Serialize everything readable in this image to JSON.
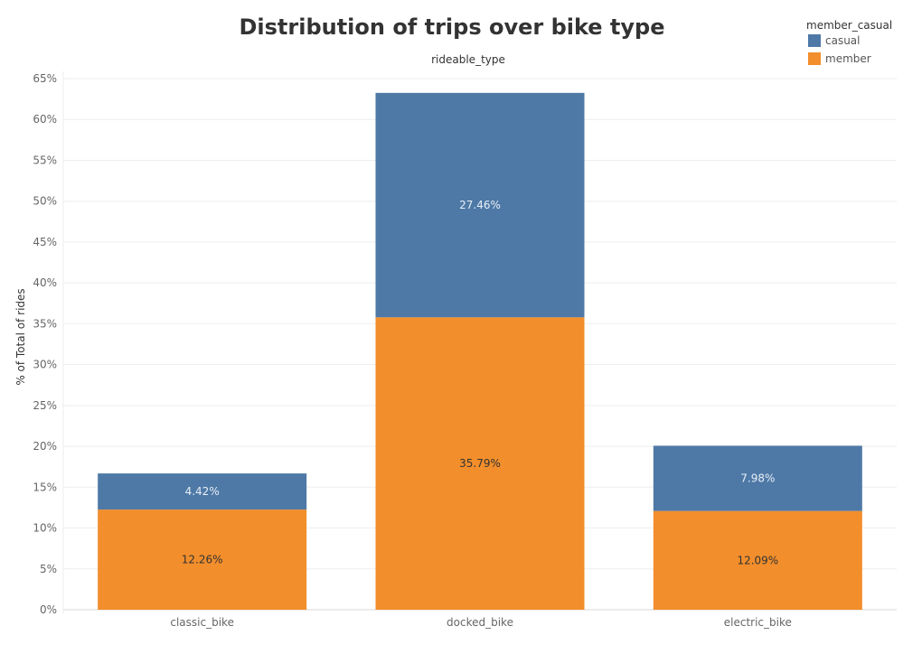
{
  "chart_data": {
    "type": "bar",
    "stacked": true,
    "title": "Distribution of trips over bike type",
    "column_header": "rideable_type",
    "ylabel": "% of Total of rides",
    "xlabel": "",
    "categories": [
      "classic_bike",
      "docked_bike",
      "electric_bike"
    ],
    "series": [
      {
        "name": "member",
        "values": [
          12.26,
          35.79,
          12.09
        ],
        "labels": [
          "12.26%",
          "35.79%",
          "12.09%"
        ],
        "color": "#f28e2b",
        "label_color": "#333333"
      },
      {
        "name": "casual",
        "values": [
          4.42,
          27.46,
          7.98
        ],
        "labels": [
          "4.42%",
          "27.46%",
          "7.98%"
        ],
        "color": "#4e79a7",
        "label_color": "#e8eef5"
      }
    ],
    "ylim": [
      0,
      65
    ],
    "yticks": [
      0,
      5,
      10,
      15,
      20,
      25,
      30,
      35,
      40,
      45,
      50,
      55,
      60,
      65
    ],
    "ytick_labels": [
      "0%",
      "5%",
      "10%",
      "15%",
      "20%",
      "25%",
      "30%",
      "35%",
      "40%",
      "45%",
      "50%",
      "55%",
      "60%",
      "65%"
    ],
    "grid": true,
    "legend": {
      "title": "member_casual",
      "placement": "top-right",
      "entries": [
        {
          "name": "casual",
          "color": "#4e79a7"
        },
        {
          "name": "member",
          "color": "#f28e2b"
        }
      ]
    }
  }
}
